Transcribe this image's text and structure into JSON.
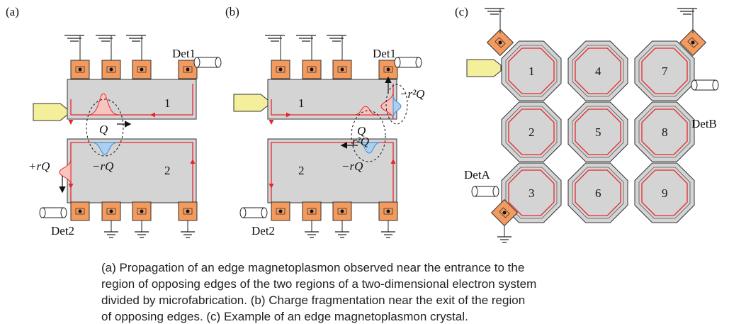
{
  "panels": [
    {
      "label": "(a)",
      "detectors": [
        "Det1",
        "Det2"
      ],
      "regions": [
        "1",
        "2"
      ],
      "charges": [
        "Q",
        "−rQ",
        "+rQ"
      ]
    },
    {
      "label": "(b)",
      "detectors": [
        "Det1",
        "Det2"
      ],
      "regions": [
        "1",
        "2"
      ],
      "charges": [
        "Q",
        "−r²Q",
        "r²Q",
        "−rQ"
      ]
    },
    {
      "label": "(c)",
      "detectors": [
        "DetA",
        "DetB"
      ],
      "regions": [
        "1",
        "2",
        "3",
        "4",
        "5",
        "6",
        "7",
        "8",
        "9"
      ]
    }
  ],
  "caption": {
    "lines": [
      "(a) Propagation of an edge magnetoplasmon observed near the entrance to the",
      "region of opposing edges of the two regions of a two-dimensional electron system",
      "divided by microfabrication. (b) Charge fragmentation near the exit of the region",
      "of opposing edges. (c) Example of an edge magnetoplasmon crystal."
    ]
  }
}
